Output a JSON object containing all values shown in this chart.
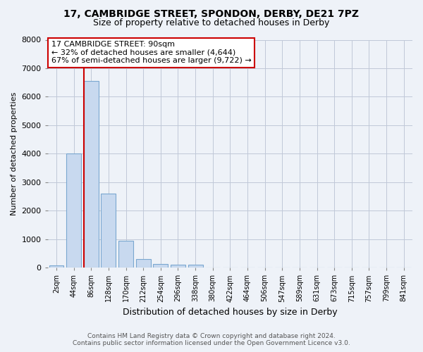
{
  "title": "17, CAMBRIDGE STREET, SPONDON, DERBY, DE21 7PZ",
  "subtitle": "Size of property relative to detached houses in Derby",
  "xlabel": "Distribution of detached houses by size in Derby",
  "ylabel": "Number of detached properties",
  "footer_line1": "Contains HM Land Registry data © Crown copyright and database right 2024.",
  "footer_line2": "Contains public sector information licensed under the Open Government Licence v3.0.",
  "bin_labels": [
    "2sqm",
    "44sqm",
    "86sqm",
    "128sqm",
    "170sqm",
    "212sqm",
    "254sqm",
    "296sqm",
    "338sqm",
    "380sqm",
    "422sqm",
    "464sqm",
    "506sqm",
    "547sqm",
    "589sqm",
    "631sqm",
    "673sqm",
    "715sqm",
    "757sqm",
    "799sqm",
    "841sqm"
  ],
  "bar_values": [
    75,
    4000,
    6550,
    2600,
    950,
    310,
    135,
    100,
    90,
    0,
    0,
    0,
    0,
    0,
    0,
    0,
    0,
    0,
    0,
    0,
    0
  ],
  "bar_color": "#c8d9ef",
  "bar_edge_color": "#7aa7d0",
  "ylim": [
    0,
    8000
  ],
  "yticks": [
    0,
    1000,
    2000,
    3000,
    4000,
    5000,
    6000,
    7000,
    8000
  ],
  "vline_bar_index": 2,
  "annotation_text": "17 CAMBRIDGE STREET: 90sqm\n← 32% of detached houses are smaller (4,644)\n67% of semi-detached houses are larger (9,722) →",
  "annotation_box_color": "#ffffff",
  "annotation_box_edge": "#cc0000",
  "vline_color": "#cc0000",
  "background_color": "#eef2f8",
  "grid_color": "#c0c8d8",
  "title_fontsize": 10,
  "subtitle_fontsize": 9
}
